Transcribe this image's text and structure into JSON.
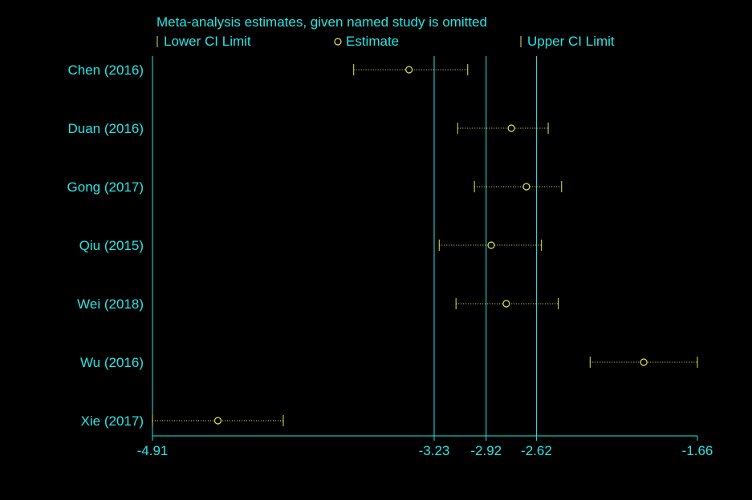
{
  "chart_data": {
    "type": "scatter",
    "title": "Meta-analysis estimates, given named study is omitted",
    "legend": {
      "lower_label": "Lower CI Limit",
      "estimate_label": "Estimate",
      "upper_label": "Upper CI Limit",
      "placement": "top"
    },
    "xlim": [
      -4.91,
      -1.66
    ],
    "xticks": [
      -4.91,
      -3.23,
      -2.92,
      -2.62,
      -1.66
    ],
    "xtick_labels": [
      "-4.91",
      "-3.23",
      "-2.92",
      "-2.62",
      "-1.66"
    ],
    "reference_lines": [
      -3.23,
      -2.92,
      -2.62
    ],
    "studies": [
      {
        "label": "Chen  (2016)",
        "lower": -3.71,
        "estimate": -3.38,
        "upper": -3.03
      },
      {
        "label": "Duan (2016)",
        "lower": -3.09,
        "estimate": -2.77,
        "upper": -2.55
      },
      {
        "label": "Gong (2017)",
        "lower": -2.99,
        "estimate": -2.68,
        "upper": -2.47
      },
      {
        "label": "Qiu (2015)",
        "lower": -3.2,
        "estimate": -2.89,
        "upper": -2.59
      },
      {
        "label": "Wei (2018)",
        "lower": -3.1,
        "estimate": -2.8,
        "upper": -2.49
      },
      {
        "label": "Wu (2016)",
        "lower": -2.3,
        "estimate": -1.98,
        "upper": -1.66
      },
      {
        "label": "Xie (2017)",
        "lower": -4.91,
        "estimate": -4.52,
        "upper": -4.13
      }
    ],
    "colors": {
      "background": "#000000",
      "axis": "#26e6e6",
      "text": "#26e6e6",
      "marker": "#e6e64d"
    }
  }
}
